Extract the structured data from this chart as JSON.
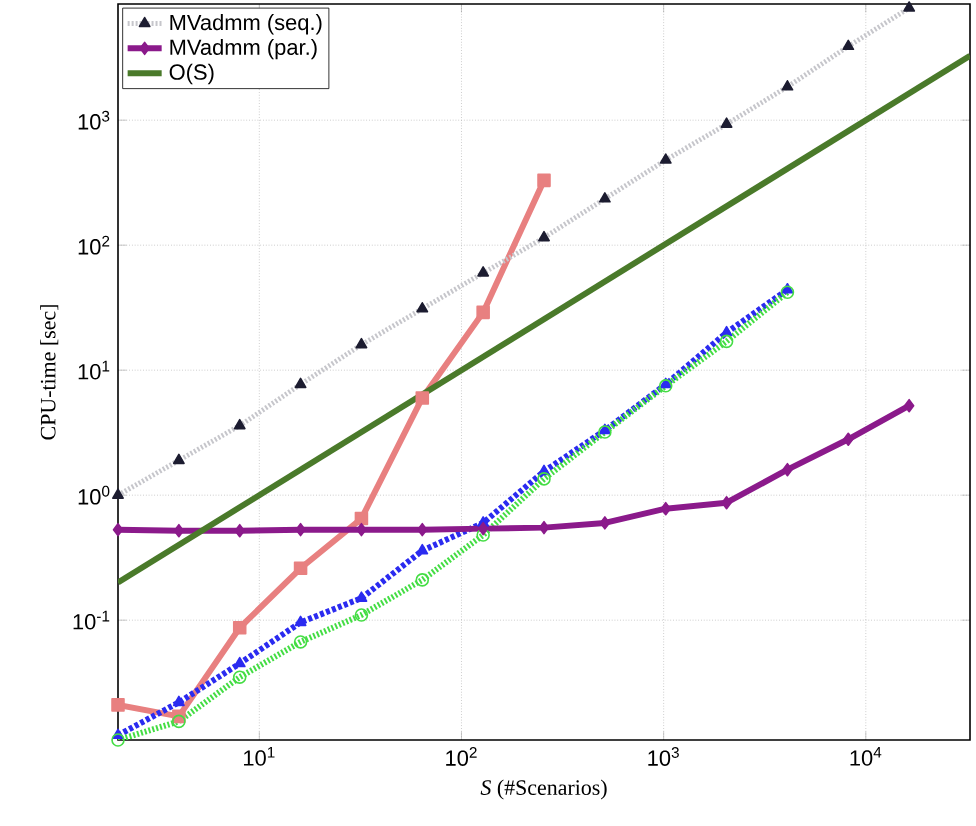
{
  "chart_data": {
    "type": "line",
    "xlabel": "*S* (#Scenarios)",
    "ylabel": "CPU-time [sec]",
    "log": "xy",
    "grid": true,
    "legend": "top left",
    "xlim": [
      2,
      32768
    ],
    "ylim": [
      0.011,
      8500
    ],
    "xticks": [
      {
        "value": 10,
        "label": "10$^{1}$"
      },
      {
        "value": 100,
        "label": "10$^{2}$"
      },
      {
        "value": 1000,
        "label": "10$^{3}$"
      },
      {
        "value": 10000,
        "label": "10$^{4}$"
      }
    ],
    "yticks": [
      {
        "value": 0.1,
        "label": "10$^{-1}$"
      },
      {
        "value": 1,
        "label": "10$^{0}$"
      },
      {
        "value": 10,
        "label": "10$^{1}$"
      },
      {
        "value": 100,
        "label": "10$^{2}$"
      },
      {
        "value": 1000,
        "label": "10$^{3}$"
      }
    ],
    "series": [
      {
        "color": "#e88080",
        "marker": "square",
        "line_style": "solid",
        "x": [
          2,
          4,
          8,
          16,
          32,
          64,
          128,
          256
        ],
        "values": [
          0.021,
          0.017,
          0.087,
          0.26,
          0.65,
          6,
          29,
          330
        ]
      },
      {
        "color": "#2b2bf0",
        "marker": "triangle",
        "line_style": "dashed",
        "x": [
          2,
          4,
          8,
          16,
          32,
          64,
          128,
          256,
          512,
          1024,
          2048,
          4096
        ],
        "values": [
          0.012,
          0.022,
          0.045,
          0.096,
          0.15,
          0.36,
          0.6,
          1.55,
          3.3,
          7.7,
          20,
          44
        ]
      },
      {
        "color": "#44dd44",
        "marker": "circle",
        "line_style": "dotted",
        "x": [
          2,
          4,
          8,
          16,
          32,
          64,
          128,
          256,
          512,
          1024,
          2048,
          4096
        ],
        "values": [
          0.011,
          0.0155,
          0.035,
          0.067,
          0.11,
          0.21,
          0.48,
          1.35,
          3.2,
          7.5,
          17,
          42
        ]
      },
      {
        "name": "MVadmm (seq.)",
        "color": "#1c1c30",
        "marker": "triangle",
        "line_style": "dotted",
        "x": [
          2,
          4,
          8,
          16,
          32,
          64,
          128,
          256,
          512,
          1024,
          2048,
          4096,
          8192,
          16384
        ],
        "values": [
          1.0,
          1.9,
          3.6,
          7.7,
          16,
          31,
          60,
          115,
          235,
          480,
          930,
          1850,
          3900,
          7900
        ]
      },
      {
        "name": "MVadmm (par.)",
        "color": "#8b1a8b",
        "marker": "diamond",
        "line_style": "solid",
        "x": [
          2,
          4,
          8,
          16,
          32,
          64,
          128,
          256,
          512,
          1024,
          2048,
          4096,
          8192,
          16384
        ],
        "values": [
          0.53,
          0.52,
          0.52,
          0.53,
          0.53,
          0.53,
          0.54,
          0.55,
          0.6,
          0.78,
          0.87,
          1.6,
          2.8,
          5.2
        ]
      },
      {
        "name": "O(S)",
        "color": "#4a7a2a",
        "marker": "none",
        "line_style": "solid",
        "x": [
          2,
          32768
        ],
        "values": [
          0.2,
          3276.8
        ]
      }
    ]
  }
}
